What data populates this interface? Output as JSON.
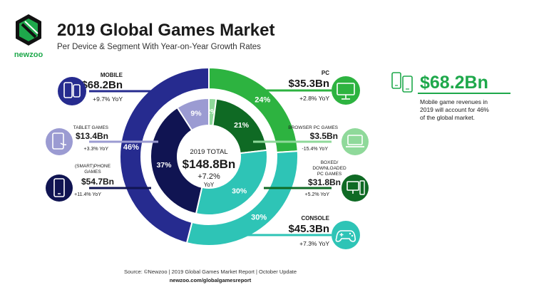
{
  "brand": {
    "name": "newzoo",
    "color": "#1ea84b"
  },
  "header": {
    "title": "2019 Global Games Market",
    "subtitle": "Per Device & Segment With Year-on-Year Growth Rates"
  },
  "center": {
    "label": "2019 TOTAL",
    "value": "$148.8Bn",
    "growth": "+7.2%",
    "yoy": "YoY"
  },
  "segments": {
    "mobile": {
      "label": "MOBILE",
      "value": "$68.2Bn",
      "growth": "+9.7% YoY",
      "icon": "mobile-devices-icon"
    },
    "tablet": {
      "label": "TABLET GAMES",
      "value": "$13.4Bn",
      "growth": "+3.3% YoY",
      "icon": "tablet-icon"
    },
    "phone": {
      "label_line1": "(SMART)PHONE",
      "label_line2": "GAMES",
      "value": "$54.7Bn",
      "growth": "+11.4% YoY",
      "icon": "smartphone-icon"
    },
    "pc": {
      "label": "PC",
      "value": "$35.3Bn",
      "growth": "+2.8% YoY",
      "icon": "monitor-icon"
    },
    "browser": {
      "label": "BROWSER PC GAMES",
      "value": "$3.5Bn",
      "growth": "-15.4% YoY",
      "icon": "laptop-icon"
    },
    "boxed": {
      "label_line1": "BOXED/",
      "label_line2": "DOWNLOADED",
      "label_line3": "PC GAMES",
      "value": "$31.8Bn",
      "growth": "+5.2% YoY",
      "icon": "desktop-pc-icon"
    },
    "console": {
      "label": "CONSOLE",
      "value": "$45.3Bn",
      "growth": "+7.3% YoY",
      "icon": "gamepad-icon"
    }
  },
  "callout": {
    "value": "$68.2Bn",
    "line1": "Mobile game revenues in",
    "line2": "2019 will account for 46%",
    "line3": "of the global market.",
    "icon": "mobile-devices-icon"
  },
  "footer": {
    "source": "Source: ©Newzoo | 2019 Global Games Market Report | October Update",
    "url": "newzoo.com/globalgamesreport"
  },
  "chart_data": {
    "type": "pie",
    "outer_ring": {
      "categories": [
        "PC",
        "Console",
        "Mobile"
      ],
      "values": [
        24,
        30,
        46
      ],
      "labels": [
        "24%",
        "30%",
        "46%"
      ],
      "colors": [
        "#2db340",
        "#2ec4b6",
        "#262b8f"
      ]
    },
    "inner_ring": {
      "categories": [
        "Browser PC Games",
        "Boxed/Downloaded PC Games",
        "Console",
        "(Smart)phone Games",
        "Tablet Games"
      ],
      "values": [
        2,
        21,
        30,
        37,
        9
      ],
      "labels": [
        "2%",
        "21%",
        "30%",
        "37%",
        "9%"
      ],
      "colors": [
        "#8fd99a",
        "#0f6a24",
        "#2ec4b6",
        "#101452",
        "#9b9bd2"
      ]
    }
  }
}
